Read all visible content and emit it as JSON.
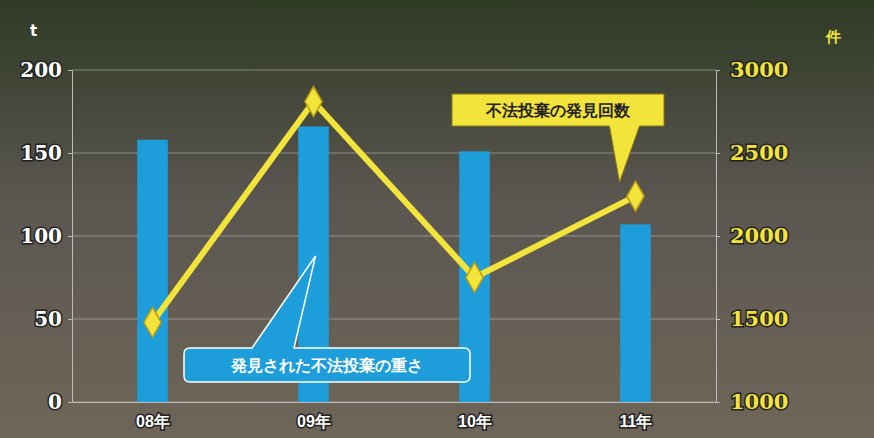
{
  "chart_data": {
    "type": "bar",
    "categories": [
      "08年",
      "09年",
      "10年",
      "11年"
    ],
    "series": [
      {
        "name": "発見された不法投棄の重さ",
        "type": "bar",
        "color": "#1e9ddb",
        "values": [
          158,
          166,
          151,
          107
        ]
      },
      {
        "name": "不法投棄の発見回数",
        "type": "line",
        "axis": "y2",
        "color": "#f3e43c",
        "marker": "diamond",
        "values": [
          1480,
          2810,
          1750,
          2240
        ]
      }
    ],
    "y_label": "t",
    "y2_label": "件",
    "ylim": [
      0,
      200
    ],
    "yticks": [
      0,
      50,
      100,
      150,
      200
    ],
    "y2lim": [
      1000,
      3000
    ],
    "y2ticks": [
      1000,
      1500,
      2000,
      2500,
      3000
    ],
    "grid": true
  }
}
